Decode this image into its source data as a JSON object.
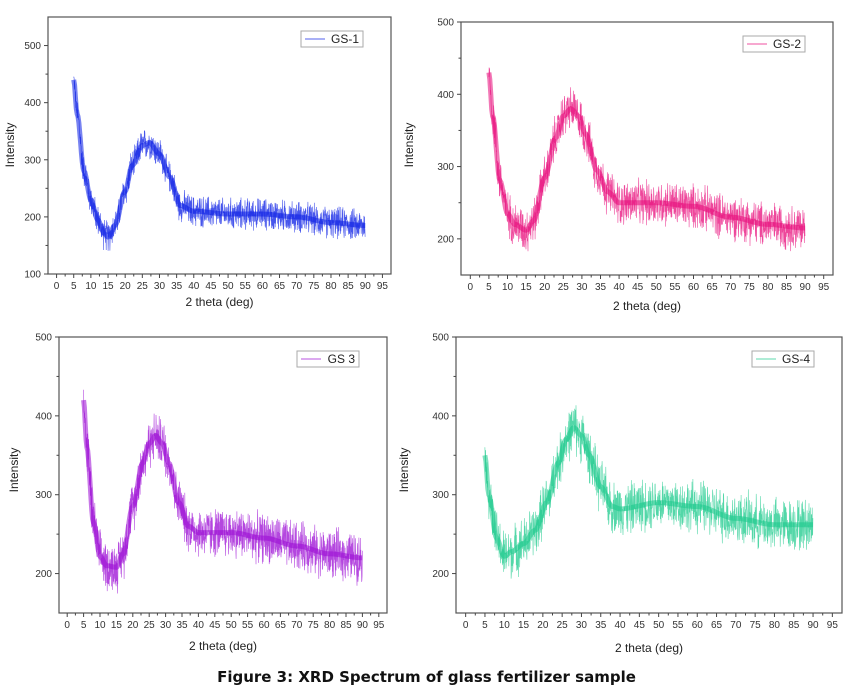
{
  "figure": {
    "caption": "Figure 3: XRD Spectrum of glass fertilizer sample"
  },
  "chart_data": [
    {
      "type": "line",
      "title": "",
      "legend": "GS-1",
      "legend_position": "top-right",
      "color": "#0a1ee6",
      "xlabel": "2 theta (deg)",
      "ylabel": "Intensity",
      "xlim": [
        -2.5,
        97.5
      ],
      "ylim": [
        100,
        550
      ],
      "xticks": [
        0,
        5,
        10,
        15,
        20,
        25,
        30,
        35,
        40,
        45,
        50,
        55,
        60,
        65,
        70,
        75,
        80,
        85,
        90,
        95
      ],
      "yticks": [
        100,
        200,
        300,
        400,
        500
      ],
      "noise_amplitude": 25,
      "x": [
        5,
        6,
        8,
        10,
        12,
        14,
        15,
        17,
        20,
        22,
        25,
        27,
        30,
        33,
        36,
        40,
        50,
        60,
        70,
        80,
        90
      ],
      "y": [
        440,
        380,
        280,
        230,
        195,
        170,
        165,
        185,
        245,
        290,
        325,
        330,
        310,
        270,
        220,
        210,
        205,
        205,
        200,
        190,
        185
      ]
    },
    {
      "type": "line",
      "title": "",
      "legend": "GS-2",
      "legend_position": "top-right",
      "color": "#e8097a",
      "xlabel": "2 theta (deg)",
      "ylabel": "Intensity",
      "xlim": [
        -2.5,
        97.5
      ],
      "ylim": [
        150,
        500
      ],
      "xticks": [
        0,
        5,
        10,
        15,
        20,
        25,
        30,
        35,
        40,
        45,
        50,
        55,
        60,
        65,
        70,
        75,
        80,
        85,
        90,
        95
      ],
      "yticks": [
        200,
        300,
        400,
        500
      ],
      "noise_amplitude": 28,
      "x": [
        5,
        6,
        8,
        10,
        12,
        15,
        17,
        20,
        23,
        25,
        27,
        29,
        31,
        34,
        37,
        40,
        50,
        60,
        70,
        80,
        90
      ],
      "y": [
        430,
        370,
        280,
        235,
        220,
        212,
        225,
        285,
        340,
        370,
        380,
        370,
        345,
        295,
        265,
        250,
        250,
        245,
        230,
        220,
        215
      ]
    },
    {
      "type": "line",
      "title": "",
      "legend": "GS 3",
      "legend_position": "top-right",
      "color": "#9b0ad4",
      "xlabel": "2 theta (deg)",
      "ylabel": "Intensity",
      "xlim": [
        -2.5,
        97.5
      ],
      "ylim": [
        150,
        500
      ],
      "xticks": [
        0,
        5,
        10,
        15,
        20,
        25,
        30,
        35,
        40,
        45,
        50,
        55,
        60,
        65,
        70,
        75,
        80,
        85,
        90,
        95
      ],
      "yticks": [
        200,
        300,
        400,
        500
      ],
      "noise_amplitude": 28,
      "x": [
        5,
        6,
        8,
        10,
        12,
        15,
        17,
        20,
        23,
        25,
        27,
        29,
        31,
        34,
        37,
        40,
        50,
        60,
        70,
        80,
        90
      ],
      "y": [
        420,
        360,
        265,
        222,
        210,
        208,
        225,
        285,
        340,
        365,
        375,
        365,
        340,
        290,
        260,
        252,
        252,
        245,
        235,
        225,
        220
      ]
    },
    {
      "type": "line",
      "title": "",
      "legend": "GS-4",
      "legend_position": "top-right",
      "color": "#19c98b",
      "xlabel": "2 theta (deg)",
      "ylabel": "Intensity",
      "xlim": [
        -2.5,
        97.5
      ],
      "ylim": [
        150,
        500
      ],
      "xticks": [
        0,
        5,
        10,
        15,
        20,
        25,
        30,
        35,
        40,
        45,
        50,
        55,
        60,
        65,
        70,
        75,
        80,
        85,
        90,
        95
      ],
      "yticks": [
        200,
        300,
        400,
        500
      ],
      "noise_amplitude": 30,
      "x": [
        5,
        6,
        8,
        10,
        12,
        15,
        18,
        21,
        24,
        26,
        28,
        30,
        32,
        35,
        38,
        40,
        50,
        60,
        70,
        80,
        90
      ],
      "y": [
        350,
        300,
        245,
        222,
        228,
        238,
        255,
        290,
        340,
        370,
        385,
        375,
        350,
        310,
        285,
        282,
        290,
        285,
        270,
        262,
        262
      ]
    }
  ]
}
